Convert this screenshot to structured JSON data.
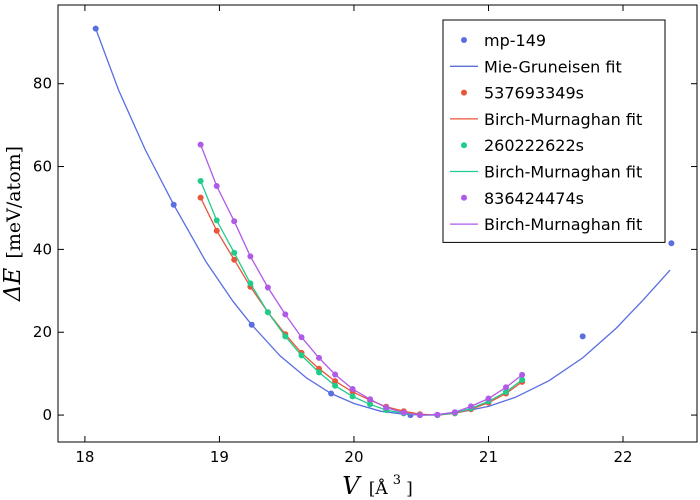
{
  "chart_data": {
    "type": "scatter",
    "xlabel_main": "V",
    "xlabel_unit": "[Å",
    "xlabel_exp": "3",
    "xlabel_close": "]",
    "ylabel_main": "ΔE",
    "ylabel_unit": "[meV/atom]",
    "xlim": [
      17.8,
      22.55
    ],
    "ylim": [
      -6.5,
      99
    ],
    "x_ticks": [
      18,
      19,
      20,
      21,
      22
    ],
    "y_ticks": [
      0,
      20,
      40,
      60,
      80
    ],
    "x_tick_labels": [
      "18",
      "19",
      "20",
      "21",
      "22"
    ],
    "y_tick_labels": [
      "0",
      "20",
      "40",
      "60",
      "80"
    ],
    "grid": false,
    "legend_position": "top-right",
    "legend": [
      {
        "label": "mp-149",
        "kind": "marker",
        "color": "#5a6ee0"
      },
      {
        "label": "Mie-Gruneisen fit",
        "kind": "line",
        "color": "#5a6ee0"
      },
      {
        "label": "537693349s",
        "kind": "marker",
        "color": "#e8553a"
      },
      {
        "label": "Birch-Murnaghan fit",
        "kind": "line",
        "color": "#e8553a"
      },
      {
        "label": "260222622s",
        "kind": "marker",
        "color": "#1fcc8a"
      },
      {
        "label": "Birch-Murnaghan fit",
        "kind": "line",
        "color": "#1fcc8a"
      },
      {
        "label": "836424474s",
        "kind": "marker",
        "color": "#b05ae8"
      },
      {
        "label": "Birch-Murnaghan fit",
        "kind": "line",
        "color": "#b05ae8"
      }
    ],
    "series": [
      {
        "name": "mp-149",
        "color": "#5a6ee0",
        "fit_name": "Mie-Gruneisen fit",
        "fit_x": [
          18.08,
          18.25,
          18.45,
          18.66,
          18.9,
          19.1,
          19.24,
          19.45,
          19.65,
          19.83,
          20.0,
          20.2,
          20.35,
          20.5,
          20.65,
          20.8,
          21.0,
          21.2,
          21.45,
          21.7,
          21.95,
          22.15,
          22.35
        ],
        "fit_y": [
          93.3,
          78.5,
          64.0,
          50.8,
          37.0,
          27.5,
          21.8,
          14.3,
          8.9,
          5.2,
          2.8,
          0.9,
          0.3,
          0.0,
          0.2,
          0.8,
          2.1,
          4.3,
          8.3,
          13.8,
          21.0,
          27.8,
          35.0
        ],
        "points_x": [
          18.08,
          18.66,
          19.24,
          19.83,
          20.42,
          21.7,
          22.36
        ],
        "points_y": [
          93.3,
          50.8,
          21.8,
          5.2,
          0.0,
          19.0,
          41.5
        ]
      },
      {
        "name": "537693349s",
        "color": "#e8553a",
        "fit_name": "Birch-Murnaghan fit",
        "points_x": [
          18.86,
          18.98,
          19.11,
          19.23,
          19.36,
          19.49,
          19.61,
          19.74,
          19.86,
          19.99,
          20.12,
          20.24,
          20.37,
          20.49,
          20.62,
          20.75,
          20.87,
          21.0,
          21.13,
          21.25
        ],
        "points_y": [
          52.5,
          44.5,
          37.5,
          31.0,
          24.8,
          19.5,
          15.0,
          11.2,
          8.2,
          5.6,
          3.6,
          2.0,
          0.9,
          0.2,
          0.0,
          0.4,
          1.4,
          3.0,
          5.2,
          8.0
        ]
      },
      {
        "name": "260222622s",
        "color": "#1fcc8a",
        "fit_name": "Birch-Murnaghan fit",
        "points_x": [
          18.86,
          18.98,
          19.11,
          19.23,
          19.36,
          19.49,
          19.61,
          19.74,
          19.86,
          19.99,
          20.12,
          20.24,
          20.37,
          20.49,
          20.62,
          20.75,
          20.87,
          21.0,
          21.13,
          21.25
        ],
        "points_y": [
          56.5,
          47.0,
          39.2,
          31.8,
          24.8,
          19.0,
          14.4,
          10.3,
          7.1,
          4.5,
          2.6,
          1.2,
          0.4,
          0.0,
          0.0,
          0.5,
          1.6,
          3.3,
          5.6,
          8.5
        ]
      },
      {
        "name": "836424474s",
        "color": "#b05ae8",
        "fit_name": "Birch-Murnaghan fit",
        "points_x": [
          18.86,
          18.98,
          19.11,
          19.23,
          19.36,
          19.49,
          19.61,
          19.74,
          19.86,
          19.99,
          20.12,
          20.24,
          20.37,
          20.49,
          20.62,
          20.75,
          20.87,
          21.0,
          21.13,
          21.25
        ],
        "points_y": [
          65.3,
          55.3,
          46.8,
          38.3,
          30.8,
          24.3,
          18.8,
          13.8,
          9.8,
          6.3,
          3.8,
          1.8,
          0.6,
          0.0,
          0.1,
          0.7,
          2.1,
          4.0,
          6.7,
          9.7
        ]
      }
    ]
  }
}
